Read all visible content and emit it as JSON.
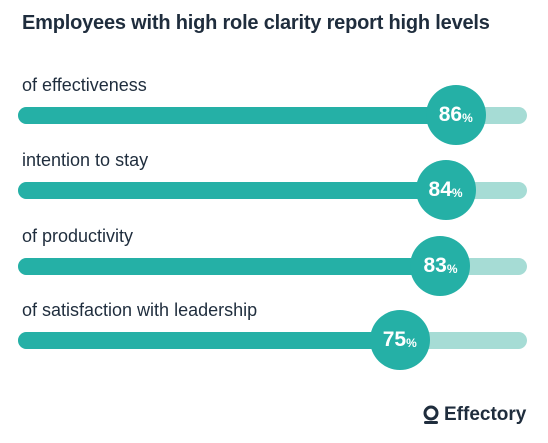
{
  "chart_data": {
    "type": "bar",
    "title": "Employees with high role clarity report high levels",
    "categories": [
      "of effectiveness",
      "intention to stay",
      "of productivity",
      "of satisfaction with leadership"
    ],
    "values": [
      86,
      84,
      83,
      75
    ],
    "value_labels": [
      "86",
      "84",
      "83",
      "75"
    ],
    "unit": "%",
    "ylim": [
      0,
      100
    ],
    "colors": {
      "fill": "#25b0a6",
      "track": "#a6dcd5",
      "text": "#1f2d3d"
    }
  },
  "brand": {
    "name": "Effectory",
    "icon": "effectory-logo-icon"
  }
}
